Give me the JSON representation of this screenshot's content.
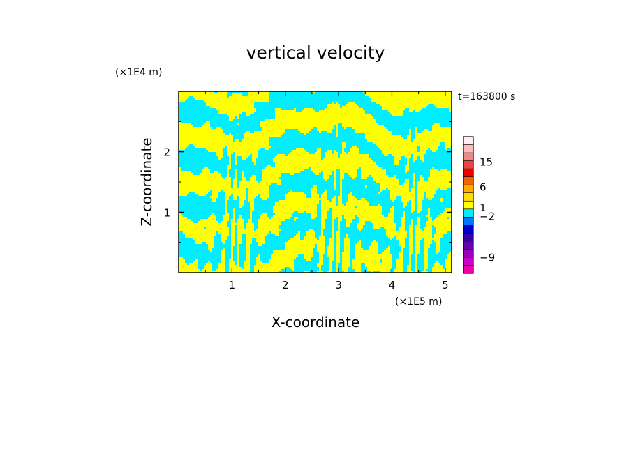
{
  "chart_data": {
    "type": "heatmap",
    "title": "vertical velocity",
    "xlabel": "X-coordinate",
    "ylabel": "Z-coordinate",
    "x_unit": "(×1E5 m)",
    "y_unit": "(×1E4 m)",
    "time_label": "t=163800 s",
    "xlim": [
      0,
      5.12
    ],
    "ylim": [
      0,
      3.0
    ],
    "x_ticks": [
      {
        "v": 1,
        "label": "1"
      },
      {
        "v": 2,
        "label": "2"
      },
      {
        "v": 3,
        "label": "3"
      },
      {
        "v": 4,
        "label": "4"
      },
      {
        "v": 5,
        "label": "5"
      }
    ],
    "y_ticks": [
      {
        "v": 1,
        "label": "1"
      },
      {
        "v": 2,
        "label": "2"
      }
    ],
    "field_colors": {
      "positive": "#ffff00",
      "negative": "#00eeff"
    },
    "grid": false,
    "legend": "right",
    "colorbar": {
      "levels": [
        {
          "color": "#ee00aa"
        },
        {
          "color": "#cc00cc"
        },
        {
          "color": "#9900bb"
        },
        {
          "color": "#6600aa"
        },
        {
          "color": "#3300aa"
        },
        {
          "color": "#0000cc"
        },
        {
          "color": "#0077ff"
        },
        {
          "color": "#00eeff"
        },
        {
          "color": "#ffff00"
        },
        {
          "color": "#ffdd00"
        },
        {
          "color": "#ffaa00"
        },
        {
          "color": "#ee6600"
        },
        {
          "color": "#ee0000"
        },
        {
          "color": "#ee4444"
        },
        {
          "color": "#ee8888"
        },
        {
          "color": "#ffbbbb"
        },
        {
          "color": "#ffeeee"
        }
      ],
      "labels": [
        {
          "label": "15",
          "pos": 0.815
        },
        {
          "label": "6",
          "pos": 0.63
        },
        {
          "label": "1",
          "pos": 0.48
        },
        {
          "label": "−2",
          "pos": 0.415
        },
        {
          "label": "−9",
          "pos": 0.115
        }
      ]
    }
  }
}
